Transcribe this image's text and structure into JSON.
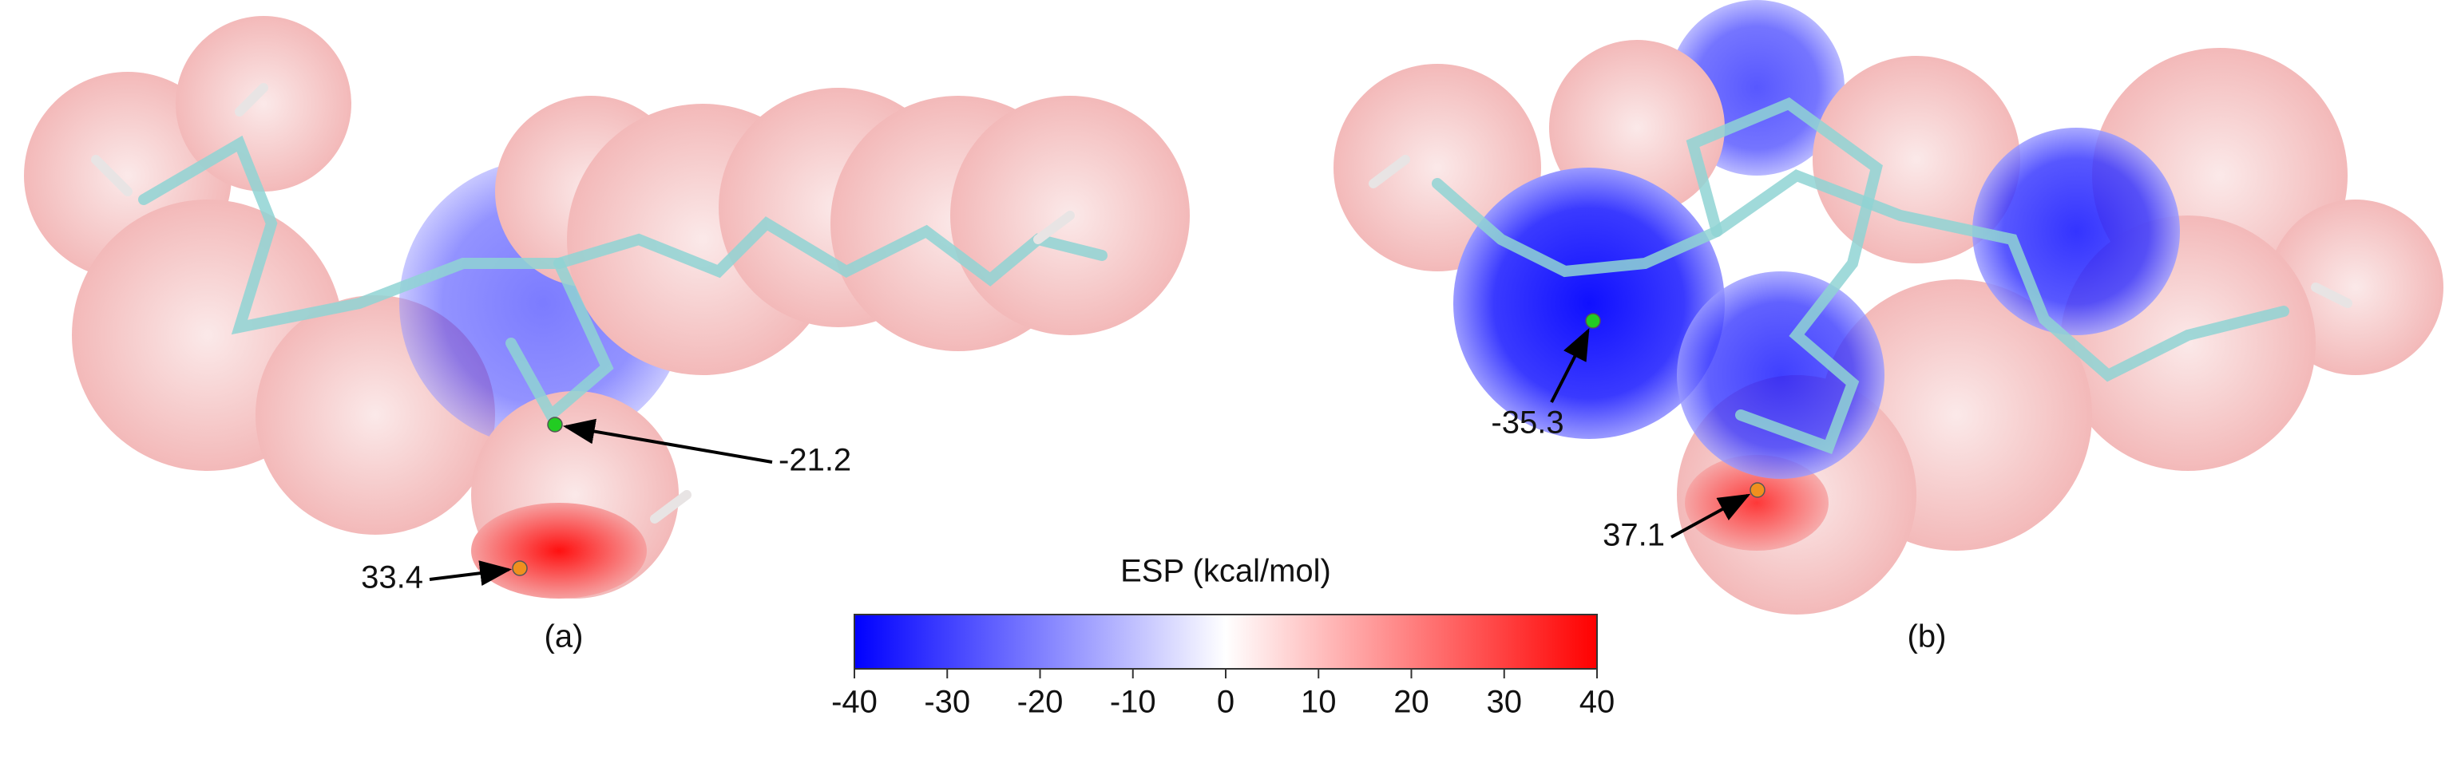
{
  "panels": [
    {
      "label": "(a)",
      "points": [
        {
          "value": -21.2,
          "color": "#22cc22"
        },
        {
          "value": 33.4,
          "color": "#f0901e"
        }
      ]
    },
    {
      "label": "(b)",
      "points": [
        {
          "value": -35.3,
          "color": "#22cc22"
        },
        {
          "value": 37.1,
          "color": "#f0901e"
        }
      ]
    }
  ],
  "colorbar": {
    "title": "ESP (kcal/mol)",
    "lim": [
      -40,
      40
    ],
    "ticks": [
      -40,
      -30,
      -20,
      -10,
      0,
      10,
      20,
      30,
      40
    ],
    "colors": [
      "#0000ff",
      "#ffffff",
      "#ff0000"
    ]
  }
}
